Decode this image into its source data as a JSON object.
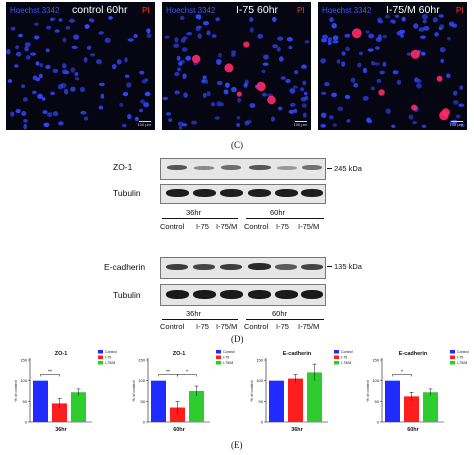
{
  "colors": {
    "hoechst_label": "#3b5bff",
    "pi_label": "#ff3a3a",
    "nucleus": "#2f47ff",
    "pi_cell": "#ff2a6a",
    "control": "#1f2bff",
    "i75": "#ff1e1e",
    "i75m": "#2ecc2e"
  },
  "panel_c": {
    "letter": "(C)",
    "images": [
      {
        "stain_label": "Hoechst 3342",
        "condition": "control 60hr",
        "pi_label": "PI",
        "scale_text": "100 µm"
      },
      {
        "stain_label": "Hoechst 3342",
        "condition": "I-75 60hr",
        "pi_label": "PI",
        "scale_text": "100 µm"
      },
      {
        "stain_label": "Hoechst 3342",
        "condition": "I-75/M 60hr",
        "pi_label": "PI",
        "scale_text": "100 µm"
      }
    ]
  },
  "panel_d": {
    "letter": "(D)",
    "blot1": {
      "protein": "ZO-1",
      "loading": "Tubulin",
      "kda": "245 kDa",
      "groups": [
        "36hr",
        "60hr"
      ],
      "lanes": [
        "Control",
        "I-75",
        "I-75/M",
        "Control",
        "I-75",
        "I-75/M"
      ]
    },
    "blot2": {
      "protein": "E-cadherin",
      "loading": "Tubulin",
      "kda": "135 kDa",
      "groups": [
        "36hr",
        "60hr"
      ],
      "lanes": [
        "Control",
        "I-75",
        "I-75/M",
        "Control",
        "I-75",
        "I-75/M"
      ]
    }
  },
  "panel_e": {
    "letter": "(E)",
    "legend": [
      "Control",
      "I-75",
      "I-75/M"
    ]
  },
  "chart_data": [
    {
      "type": "bar",
      "title": "ZO-1",
      "xlabel": "36hr",
      "ylabel": "% of control",
      "categories": [
        "Control",
        "I-75",
        "I-75/M"
      ],
      "values": [
        100,
        45,
        72
      ],
      "errors": [
        0,
        12,
        8
      ],
      "ylim": [
        0,
        150
      ],
      "yticks": [
        "0",
        "50",
        "100",
        "150"
      ],
      "significance": [
        {
          "from": 0,
          "to": 1,
          "label": "**"
        }
      ],
      "legend_position": "top-right"
    },
    {
      "type": "bar",
      "title": "ZO-1",
      "xlabel": "60hr",
      "ylabel": "% of control",
      "categories": [
        "Control",
        "I-75",
        "I-75/M"
      ],
      "values": [
        100,
        35,
        75
      ],
      "errors": [
        0,
        15,
        12
      ],
      "ylim": [
        0,
        150
      ],
      "yticks": [
        "0",
        "50",
        "100",
        "150"
      ],
      "significance": [
        {
          "from": 0,
          "to": 1,
          "label": "**"
        },
        {
          "from": 1,
          "to": 2,
          "label": "*"
        }
      ],
      "legend_position": "top-right"
    },
    {
      "type": "bar",
      "title": "E-cadherin",
      "xlabel": "36hr",
      "ylabel": "% of control",
      "categories": [
        "Control",
        "I-75",
        "I-75/M"
      ],
      "values": [
        100,
        105,
        120
      ],
      "errors": [
        0,
        10,
        20
      ],
      "ylim": [
        0,
        150
      ],
      "yticks": [
        "0",
        "50",
        "100",
        "150"
      ],
      "significance": [],
      "legend_position": "top-right"
    },
    {
      "type": "bar",
      "title": "E-cadherin",
      "xlabel": "60hr",
      "ylabel": "% of control",
      "categories": [
        "Control",
        "I-75",
        "I-75/M"
      ],
      "values": [
        100,
        62,
        72
      ],
      "errors": [
        0,
        10,
        8
      ],
      "ylim": [
        0,
        150
      ],
      "yticks": [
        "0",
        "50",
        "100",
        "150"
      ],
      "significance": [
        {
          "from": 0,
          "to": 1,
          "label": "*"
        }
      ],
      "legend_position": "top-right"
    }
  ]
}
